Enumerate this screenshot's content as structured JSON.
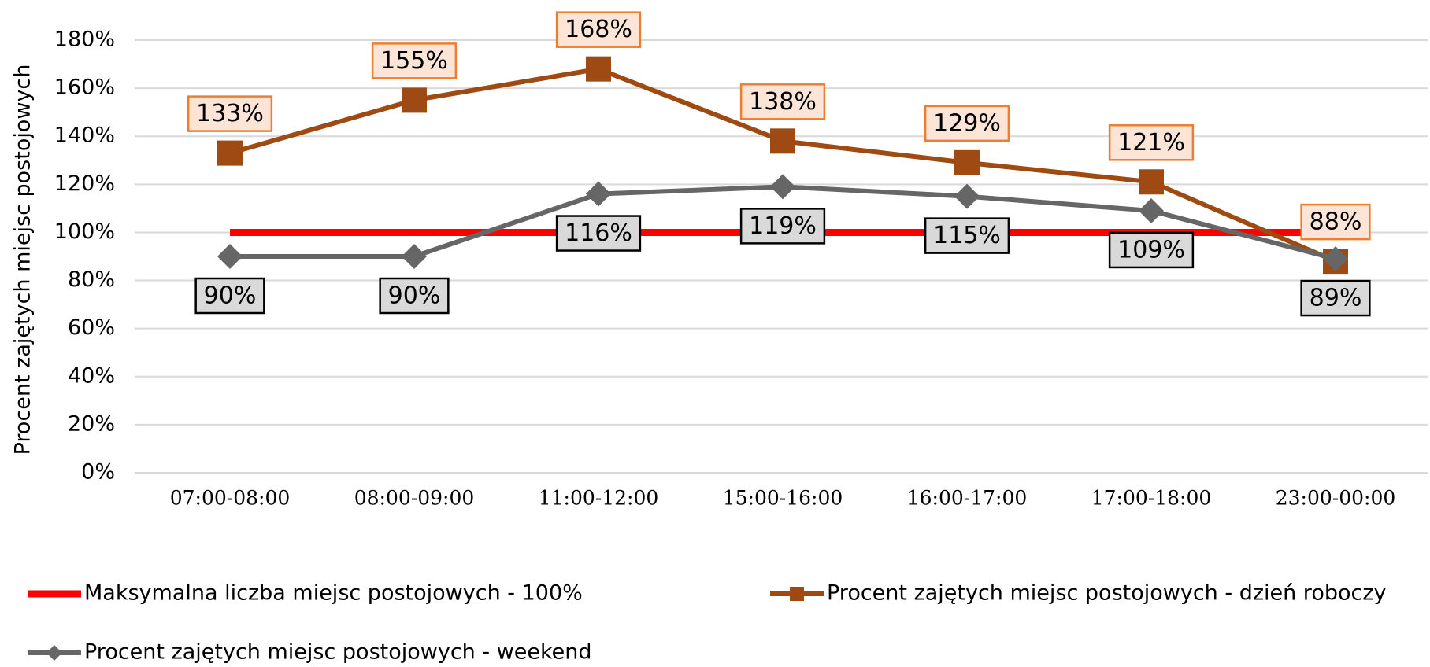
{
  "chart_data": {
    "type": "line",
    "y_label": "Procent zajętych miejsc postojowych",
    "categories": [
      "07:00-08:00",
      "08:00-09:00",
      "11:00-12:00",
      "15:00-16:00",
      "16:00-17:00",
      "17:00-18:00",
      "23:00-00:00"
    ],
    "series": [
      {
        "name": "Maksymalna liczba miejsc postojowych - 100%",
        "color": "#ff0000",
        "marker": "none",
        "values": [
          100,
          100,
          100,
          100,
          100,
          100,
          100
        ]
      },
      {
        "name": "Procent zajętych miejsc postojowych - dzień roboczy",
        "color": "#9e4a12",
        "marker": "square",
        "values": [
          133,
          155,
          168,
          138,
          129,
          121,
          88
        ],
        "value_labels": [
          "133%",
          "155%",
          "168%",
          "138%",
          "129%",
          "121%",
          "88%"
        ]
      },
      {
        "name": "Procent zajętych miejsc postojowych - weekend",
        "color": "#666666",
        "marker": "diamond",
        "values": [
          90,
          90,
          116,
          119,
          115,
          109,
          89
        ],
        "value_labels": [
          "90%",
          "90%",
          "116%",
          "119%",
          "115%",
          "109%",
          "89%"
        ]
      }
    ],
    "ylim": [
      0,
      180
    ],
    "yticks": [
      {
        "value": 0,
        "label": "0%"
      },
      {
        "value": 20,
        "label": "20%"
      },
      {
        "value": 40,
        "label": "40%"
      },
      {
        "value": 60,
        "label": "60%"
      },
      {
        "value": 80,
        "label": "80%"
      },
      {
        "value": 100,
        "label": "100%"
      },
      {
        "value": 120,
        "label": "120%"
      },
      {
        "value": 140,
        "label": "140%"
      },
      {
        "value": 160,
        "label": "160%"
      },
      {
        "value": 180,
        "label": "180%"
      }
    ],
    "grid": true
  }
}
